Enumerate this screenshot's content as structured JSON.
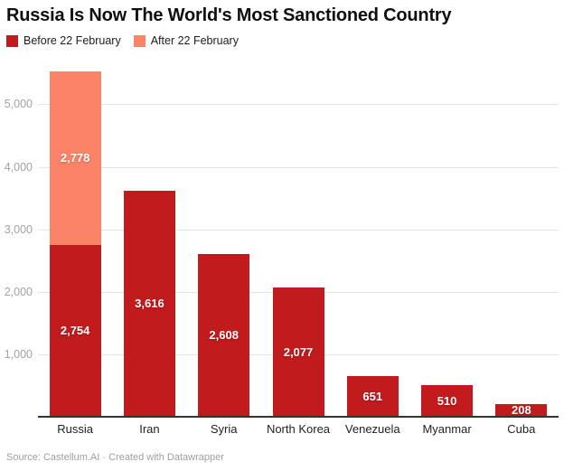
{
  "chart_data": {
    "type": "bar",
    "stacked": true,
    "title": "Russia Is Now The World's Most Sanctioned Country",
    "categories": [
      "Russia",
      "Iran",
      "Syria",
      "North Korea",
      "Venezuela",
      "Myanmar",
      "Cuba"
    ],
    "series": [
      {
        "name": "Before 22 February",
        "color": "#c21b1e",
        "values": [
          2754,
          3616,
          2608,
          2077,
          651,
          510,
          208
        ],
        "value_labels": [
          "2,754",
          "3,616",
          "2,608",
          "2,077",
          "651",
          "510",
          "208"
        ]
      },
      {
        "name": "After 22 February",
        "color": "#fb8367",
        "values": [
          2778,
          0,
          0,
          0,
          0,
          0,
          0
        ],
        "value_labels": [
          "2,778",
          "",
          "",
          "",
          "",
          "",
          ""
        ]
      }
    ],
    "y_axis": {
      "ticks": [
        1000,
        2000,
        3000,
        4000,
        5000
      ],
      "tick_labels": [
        "1,000",
        "2,000",
        "3,000",
        "4,000",
        "5,000"
      ],
      "range": [
        0,
        5600
      ]
    },
    "grid": true,
    "legend_position": "top-left",
    "xlabel": "",
    "ylabel": "",
    "source": "Source: Castellum.AI · Created with Datawrapper"
  }
}
